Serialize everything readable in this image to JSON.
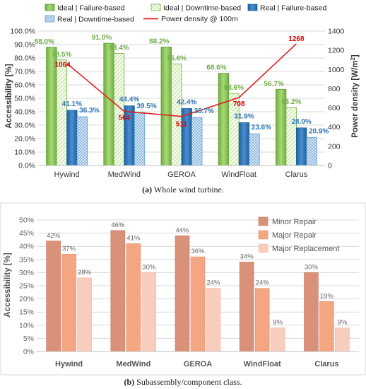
{
  "colors": {
    "ideal_failure": "#92d050",
    "ideal_downtime": "#e8f3d8",
    "real_failure": "#2e75b6",
    "real_downtime": "#cfe0f1",
    "power_line": "#e02020",
    "minor_repair": "#d9917a",
    "major_repair": "#f4a683",
    "major_replacement": "#f9cdbd",
    "label_green": "#70ad47",
    "label_blue": "#2e75b6",
    "label_red": "#e00000"
  },
  "chart_data": [
    {
      "type": "bar",
      "caption_prefix": "(a)",
      "caption_text": " Whole wind turbine.",
      "categories": [
        "Hywind",
        "MedWind",
        "GEROA",
        "WindFloat",
        "Clarus"
      ],
      "ylabel": "Accessibility [%]",
      "ylabel_right_prefix": "Power density [W/m",
      "ylabel_right_sup": "2",
      "ylabel_right_suffix": "]",
      "ylim": [
        0,
        100
      ],
      "ylim_right": [
        0,
        1400
      ],
      "yticks": [
        "0.0%",
        "10.0%",
        "20.0%",
        "30.0%",
        "40.0%",
        "50.0%",
        "60.0%",
        "70.0%",
        "80.0%",
        "90.0%",
        "100.0%"
      ],
      "yticks_right": [
        "0",
        "200",
        "400",
        "600",
        "800",
        "1000",
        "1200",
        "1400"
      ],
      "grid": true,
      "legend_position": "top",
      "series": [
        {
          "name": "Ideal  | Failure-based",
          "values": [
            88.0,
            91.0,
            88.2,
            68.6,
            56.7
          ],
          "labels": [
            "88.0%",
            "91.0%",
            "88.2%",
            "68.6%",
            "56.7%"
          ]
        },
        {
          "name": "Ideal  | Downtime-based",
          "values": [
            78.5,
            83.4,
            75.6,
            53.6,
            43.2
          ],
          "labels": [
            "78.5%",
            "83.4%",
            "75.6%",
            "53.6%",
            "43.2%"
          ]
        },
        {
          "name": "Real   | Failure-based",
          "values": [
            41.1,
            44.4,
            42.4,
            31.9,
            28.0
          ],
          "labels": [
            "41.1%",
            "44.4%",
            "42.4%",
            "31.9%",
            "28.0%"
          ]
        },
        {
          "name": "Real   | Downtime-based",
          "values": [
            36.3,
            39.5,
            35.7,
            23.6,
            20.9
          ],
          "labels": [
            "36.3%",
            "39.5%",
            "35.7%",
            "23.6%",
            "20.9%"
          ]
        }
      ],
      "line_series": {
        "name": "Power density @ 100m",
        "values": [
          1064,
          564,
          511,
          708,
          1268
        ],
        "labels": [
          "1064",
          "564",
          "511",
          "708",
          "1268"
        ],
        "axis": "right"
      }
    },
    {
      "type": "bar",
      "caption_prefix": "(b)",
      "caption_text": " Subassembly/component class.",
      "categories": [
        "Hywind",
        "MedWind",
        "GEROA",
        "WindFloat",
        "Clarus"
      ],
      "ylabel": "Accessibility [%]",
      "ylim": [
        0,
        50
      ],
      "yticks": [
        "0%",
        "5%",
        "10%",
        "15%",
        "20%",
        "25%",
        "30%",
        "35%",
        "40%",
        "45%",
        "50%"
      ],
      "grid": true,
      "legend_position": "top-right",
      "series": [
        {
          "name": "Minor Repair",
          "values": [
            42,
            46,
            44,
            34,
            30
          ],
          "labels": [
            "42%",
            "46%",
            "44%",
            "34%",
            "30%"
          ]
        },
        {
          "name": "Major Repair",
          "values": [
            37,
            41,
            36,
            24,
            19
          ],
          "labels": [
            "37%",
            "41%",
            "36%",
            "24%",
            "19%"
          ]
        },
        {
          "name": "Major Replacement",
          "values": [
            28,
            30,
            24,
            9,
            9
          ],
          "labels": [
            "28%",
            "30%",
            "24%",
            "9%",
            "9%"
          ]
        }
      ]
    }
  ]
}
